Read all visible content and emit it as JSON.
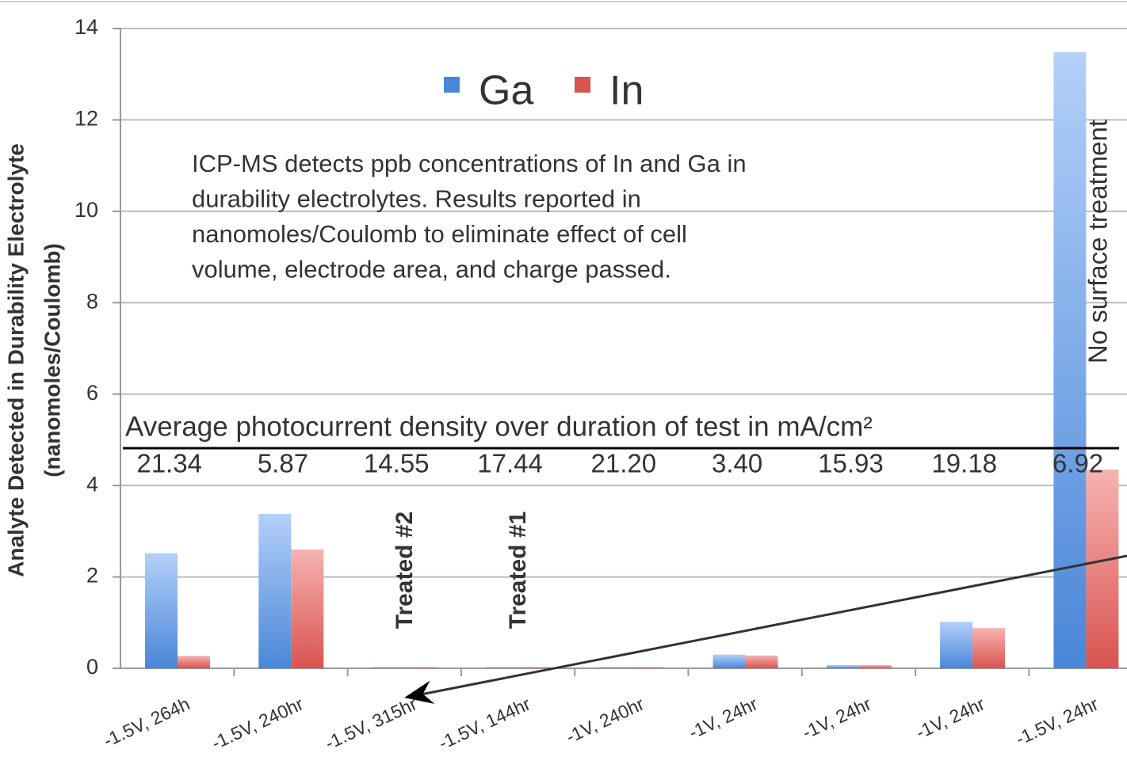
{
  "chart_data": {
    "type": "bar",
    "ylabel": [
      "Analyte Detected in Durability Electrolyte",
      "(nanomoles/Coulomb)"
    ],
    "categories": [
      "-1.5V, 264h",
      "-1.5V, 240hr",
      "-1.5V, 315hr",
      "-1.5V, 144hr",
      "-1V, 240hr",
      "-1V, 24hr",
      "-1V, 24hr",
      "-1V, 24hr",
      "-1.5V, 24hr"
    ],
    "series": [
      {
        "name": "Ga",
        "color": "#4a86d8",
        "values": [
          2.52,
          3.38,
          0.03,
          0.03,
          0.03,
          0.3,
          0.07,
          1.02,
          13.48
        ]
      },
      {
        "name": "In",
        "color": "#d9534f",
        "values": [
          0.27,
          2.6,
          0.03,
          0.03,
          0.03,
          0.28,
          0.07,
          0.88,
          4.35
        ]
      }
    ],
    "ylim": [
      0,
      14
    ],
    "yticks": [
      0,
      2,
      4,
      6,
      8,
      10,
      12,
      14
    ],
    "grid": true,
    "note": [
      "ICP-MS detects ppb concentrations of In and Ga in",
      "durability electrolytes.  Results reported in",
      "nanomoles/Coulomb to eliminate effect of cell",
      "volume, electrode area, and charge passed."
    ],
    "photocurrent_title": "Average photocurrent density over duration of test in mA/cm²",
    "photocurrent_labels": [
      "21.34",
      "5.87",
      "14.55",
      "17.44",
      "21.20",
      "3.40",
      "15.93",
      "19.18",
      "6.92"
    ],
    "treated_2": "Treated #2",
    "treated_1": "Treated #1",
    "untreated": "No surface treatment"
  }
}
